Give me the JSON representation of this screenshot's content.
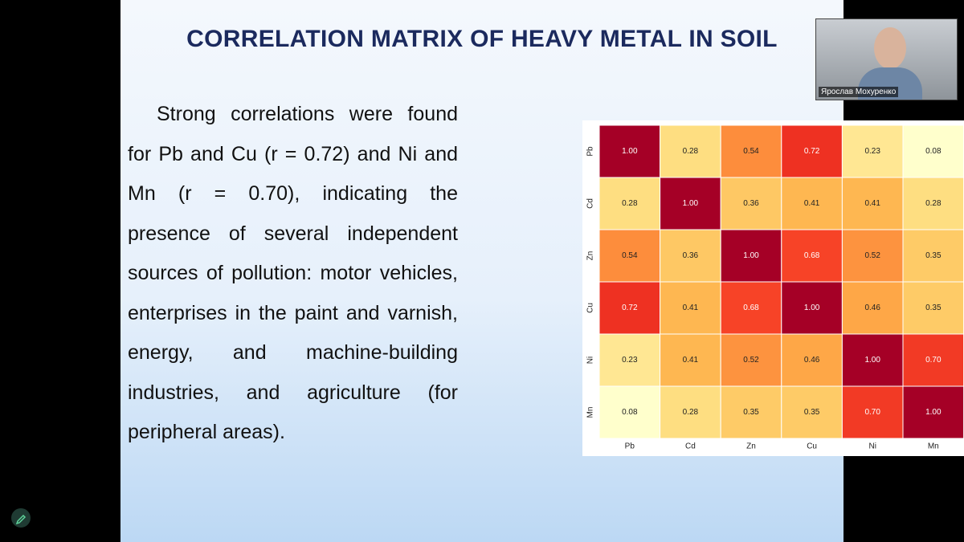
{
  "slide": {
    "title": "CORRELATION MATRIX OF HEAVY METAL IN SOIL",
    "text": "Strong correlations were found for Pb and Cu (r = 0.72) and Ni and Mn (r = 0.70), indicating the presence of several independent sources of pollution: motor vehicles, enterprises in the paint and varnish, energy, and machine-building industries, and agriculture (for peripheral areas)."
  },
  "chart_data": {
    "type": "heatmap",
    "colormap": "YlOrRd",
    "x_labels": [
      "Pb",
      "Cd",
      "Zn",
      "Cu",
      "Ni",
      "Mn"
    ],
    "y_labels": [
      "Pb",
      "Cd",
      "Zn",
      "Cu",
      "Ni",
      "Mn"
    ],
    "values": [
      [
        1,
        0.28,
        0.54,
        0.72,
        0.23,
        0.08
      ],
      [
        0.28,
        1,
        0.36,
        0.41,
        0.41,
        0.28
      ],
      [
        0.54,
        0.36,
        1,
        0.68,
        0.52,
        0.35
      ],
      [
        0.72,
        0.41,
        0.68,
        1,
        0.46,
        0.35
      ],
      [
        0.23,
        0.41,
        0.52,
        0.46,
        1,
        0.7
      ],
      [
        0.08,
        0.28,
        0.35,
        0.35,
        0.7,
        1
      ]
    ],
    "value_labels": [
      [
        "1.00",
        "0.28",
        "0.54",
        "0.72",
        "0.23",
        "0.08"
      ],
      [
        "0.28",
        "1.00",
        "0.36",
        "0.41",
        "0.41",
        "0.28"
      ],
      [
        "0.54",
        "0.36",
        "1.00",
        "0.68",
        "0.52",
        "0.35"
      ],
      [
        "0.72",
        "0.41",
        "0.68",
        "1.00",
        "0.46",
        "0.35"
      ],
      [
        "0.23",
        "0.41",
        "0.52",
        "0.46",
        "1.00",
        "0.70"
      ],
      [
        "0.08",
        "0.28",
        "0.35",
        "0.35",
        "0.70",
        "1.00"
      ]
    ]
  },
  "participant": {
    "name": "Ярослав Мохуренко"
  }
}
